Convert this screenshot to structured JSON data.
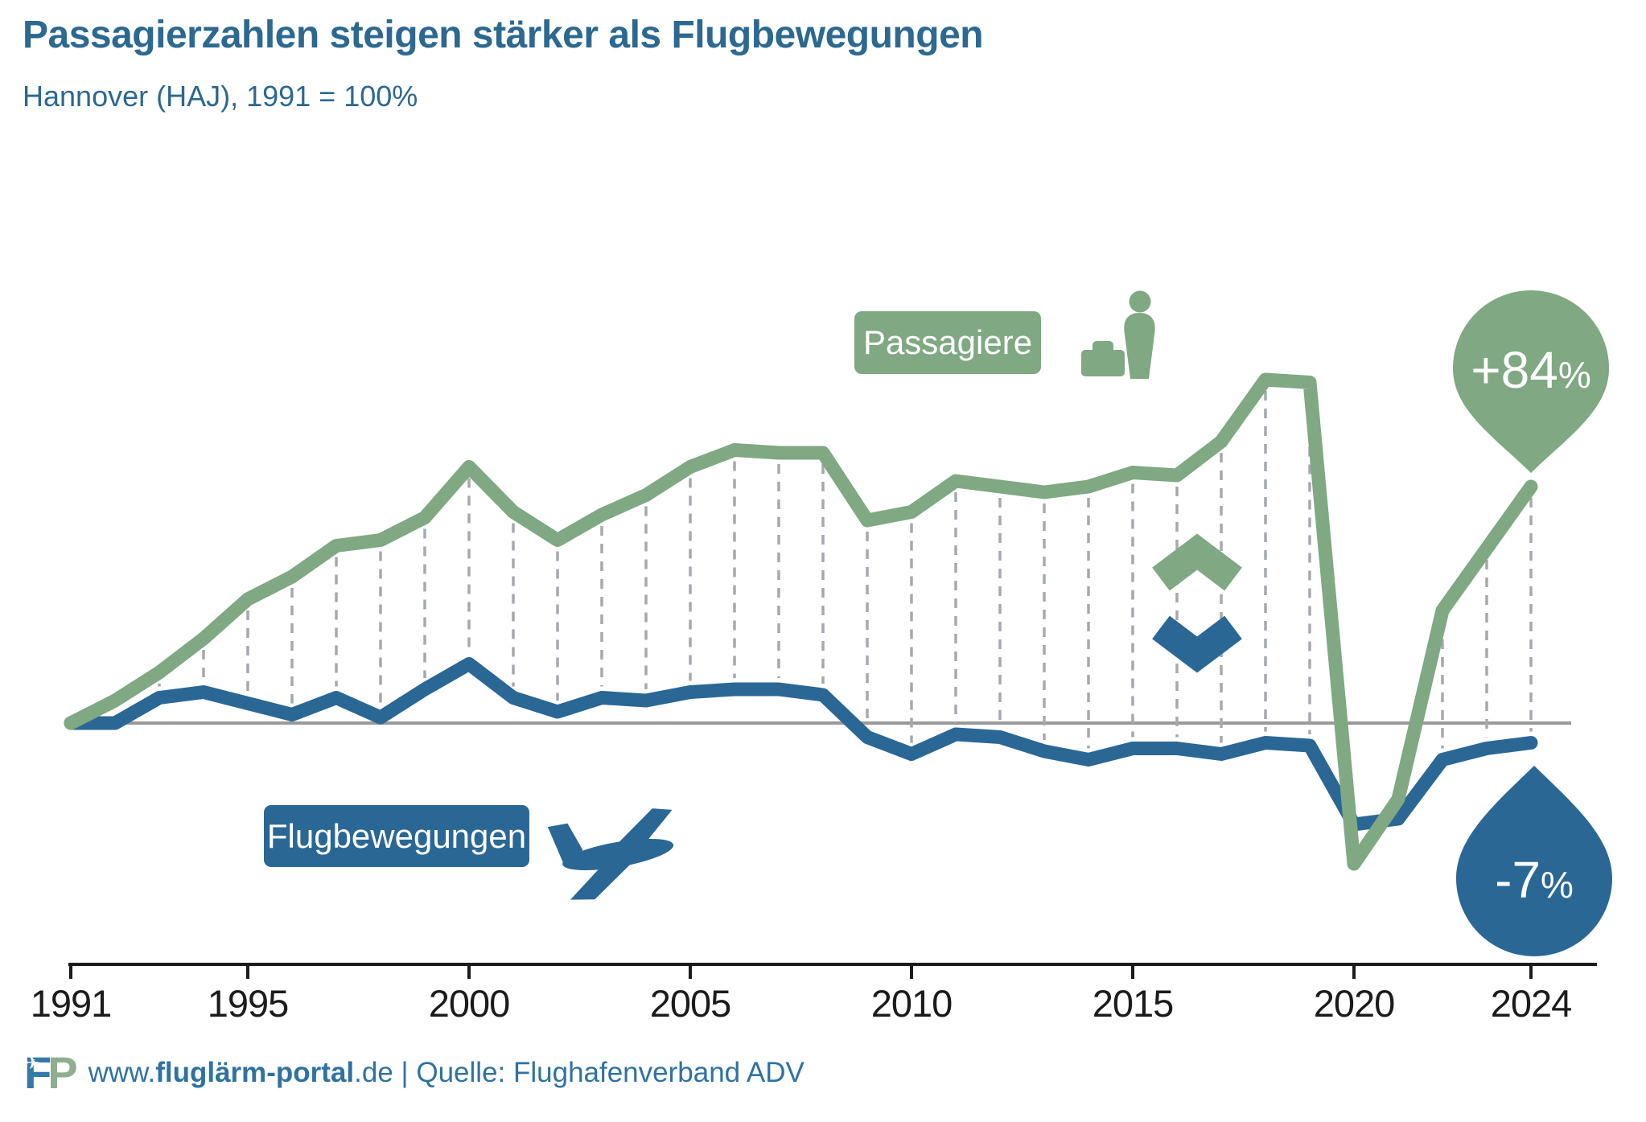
{
  "title": "Passagierzahlen steigen stärker als Flugbewegungen",
  "subtitle": "Hannover (HAJ), 1991 = 100%",
  "legend": {
    "passengers_label": "Passagiere",
    "movements_label": "Flugbewegungen"
  },
  "callouts": {
    "passengers_value": "+84",
    "movements_value": "-7",
    "percent": "%"
  },
  "footer": {
    "logo_f": "F",
    "logo_p": "P",
    "url_prefix": "www.",
    "url_bold": "fluglärm-portal",
    "url_suffix": ".de",
    "separator": " | ",
    "source": "Quelle: Flughafenverband ADV"
  },
  "colors": {
    "green": "#7FA883",
    "blue": "#2B6795",
    "title": "#2C6890",
    "axis_text": "#1B1B1B",
    "gridline": "#A5A9AD",
    "baseline": "#9A9A9A",
    "footer_text": "#2F72A0",
    "logo_blue": "#3379A8",
    "logo_green": "#8FAE8F"
  },
  "chart_data": {
    "type": "line",
    "title": "Passagierzahlen steigen stärker als Flugbewegungen",
    "subtitle": "Hannover (HAJ), 1991 = 100%",
    "x": [
      1991,
      1992,
      1993,
      1994,
      1995,
      1996,
      1997,
      1998,
      1999,
      2000,
      2001,
      2002,
      2003,
      2004,
      2005,
      2006,
      2007,
      2008,
      2009,
      2010,
      2011,
      2012,
      2013,
      2014,
      2015,
      2016,
      2017,
      2018,
      2019,
      2020,
      2021,
      2022,
      2023,
      2024
    ],
    "x_tick_labels": [
      "1991",
      "1995",
      "2000",
      "2005",
      "2010",
      "2015",
      "2020",
      "2024"
    ],
    "baseline_value": 100,
    "ylim": [
      40,
      235
    ],
    "grid": "dashed vertical drop-lines connecting the two series at each year",
    "legend_position": "inline boxed labels",
    "series": [
      {
        "name": "Passagiere",
        "color": "#7FA883",
        "values": [
          100,
          108,
          118,
          130,
          144,
          152,
          163,
          165,
          173,
          191,
          175,
          165,
          174,
          181,
          191,
          197,
          196,
          196,
          172,
          175,
          186,
          184,
          182,
          184,
          189,
          188,
          200,
          222,
          221,
          50,
          73,
          140,
          162,
          184
        ]
      },
      {
        "name": "Flugbewegungen",
        "color": "#2B6795",
        "values": [
          100,
          100,
          109,
          111,
          107,
          103,
          109,
          102,
          112,
          121,
          109,
          104,
          109,
          108,
          111,
          112,
          112,
          110,
          95,
          89,
          96,
          95,
          90,
          87,
          91,
          91,
          89,
          93,
          92,
          64,
          66,
          87,
          91,
          93
        ]
      }
    ],
    "annotations": [
      {
        "series": "Passagiere",
        "x": 2024,
        "label": "+84%"
      },
      {
        "series": "Flugbewegungen",
        "x": 2024,
        "label": "-7%"
      }
    ]
  }
}
